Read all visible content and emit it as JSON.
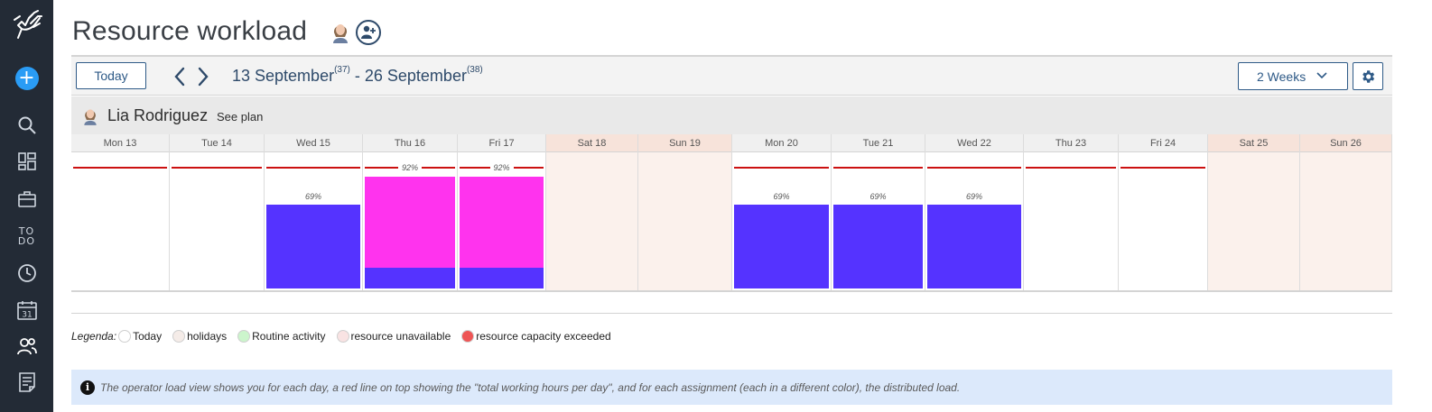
{
  "sidebar": {
    "items": [
      {
        "icon": "logo-hand-icon"
      },
      {
        "icon": "add-icon",
        "glyph": "+",
        "color": "#2a9cf5"
      },
      {
        "icon": "search-icon"
      },
      {
        "icon": "dashboard-icon"
      },
      {
        "icon": "briefcase-icon"
      },
      {
        "icon": "todo-icon",
        "text": "TO\nDO"
      },
      {
        "icon": "clock-icon"
      },
      {
        "icon": "calendar-icon",
        "text": "31"
      },
      {
        "icon": "users-icon",
        "active": true
      },
      {
        "icon": "report-icon"
      }
    ]
  },
  "header": {
    "title": "Resource workload"
  },
  "toolbar": {
    "today_label": "Today",
    "range_start": "13 September",
    "range_start_week": "(37)",
    "range_separator": " - ",
    "range_end": "26 September",
    "range_end_week": "(38)",
    "period_select": "2 Weeks"
  },
  "resource": {
    "name": "Lia Rodriguez",
    "see_plan": "See plan"
  },
  "days": [
    {
      "label": "Mon 13",
      "weekend": false,
      "capacity_line": true,
      "load_pct": null,
      "segments": []
    },
    {
      "label": "Tue 14",
      "weekend": false,
      "capacity_line": true,
      "load_pct": null,
      "segments": []
    },
    {
      "label": "Wed 15",
      "weekend": false,
      "capacity_line": true,
      "load_pct": "69%",
      "segments": [
        {
          "color": "#5533ff",
          "fraction": 0.69
        }
      ]
    },
    {
      "label": "Thu 16",
      "weekend": false,
      "capacity_line": true,
      "load_pct": "92%",
      "segments": [
        {
          "color": "#5533ff",
          "fraction": 0.17
        },
        {
          "color": "#ff33ee",
          "fraction": 0.75
        }
      ]
    },
    {
      "label": "Fri 17",
      "weekend": false,
      "capacity_line": true,
      "load_pct": "92%",
      "segments": [
        {
          "color": "#5533ff",
          "fraction": 0.17
        },
        {
          "color": "#ff33ee",
          "fraction": 0.75
        }
      ]
    },
    {
      "label": "Sat 18",
      "weekend": true,
      "capacity_line": false,
      "load_pct": null,
      "segments": []
    },
    {
      "label": "Sun 19",
      "weekend": true,
      "capacity_line": false,
      "load_pct": null,
      "segments": []
    },
    {
      "label": "Mon 20",
      "weekend": false,
      "capacity_line": true,
      "load_pct": "69%",
      "segments": [
        {
          "color": "#5533ff",
          "fraction": 0.69
        }
      ]
    },
    {
      "label": "Tue 21",
      "weekend": false,
      "capacity_line": true,
      "load_pct": "69%",
      "segments": [
        {
          "color": "#5533ff",
          "fraction": 0.69
        }
      ]
    },
    {
      "label": "Wed 22",
      "weekend": false,
      "capacity_line": true,
      "load_pct": "69%",
      "segments": [
        {
          "color": "#5533ff",
          "fraction": 0.69
        }
      ]
    },
    {
      "label": "Thu 23",
      "weekend": false,
      "capacity_line": true,
      "load_pct": null,
      "segments": []
    },
    {
      "label": "Fri 24",
      "weekend": false,
      "capacity_line": true,
      "load_pct": null,
      "segments": []
    },
    {
      "label": "Sat 25",
      "weekend": true,
      "capacity_line": false,
      "load_pct": null,
      "segments": []
    },
    {
      "label": "Sun 26",
      "weekend": true,
      "capacity_line": false,
      "load_pct": null,
      "segments": []
    }
  ],
  "legend": {
    "title": "Legenda:",
    "items": [
      {
        "label": "Today",
        "color": "#ffffff"
      },
      {
        "label": "holidays",
        "color": "#f5ece8"
      },
      {
        "label": "Routine activity",
        "color": "#ccf5cc"
      },
      {
        "label": "resource unavailable",
        "color": "#f9e3e3"
      },
      {
        "label": "resource capacity exceeded",
        "color": "#ee5555"
      }
    ]
  },
  "info": {
    "text": "The operator load view shows you for each day, a red line on top showing the \"total working hours per day\", and for each assignment (each in a different color), the distributed load."
  },
  "colors": {
    "sidebar_bg": "#232b36",
    "capacity_line": "#cc1111",
    "accent": "#2e5a87"
  }
}
